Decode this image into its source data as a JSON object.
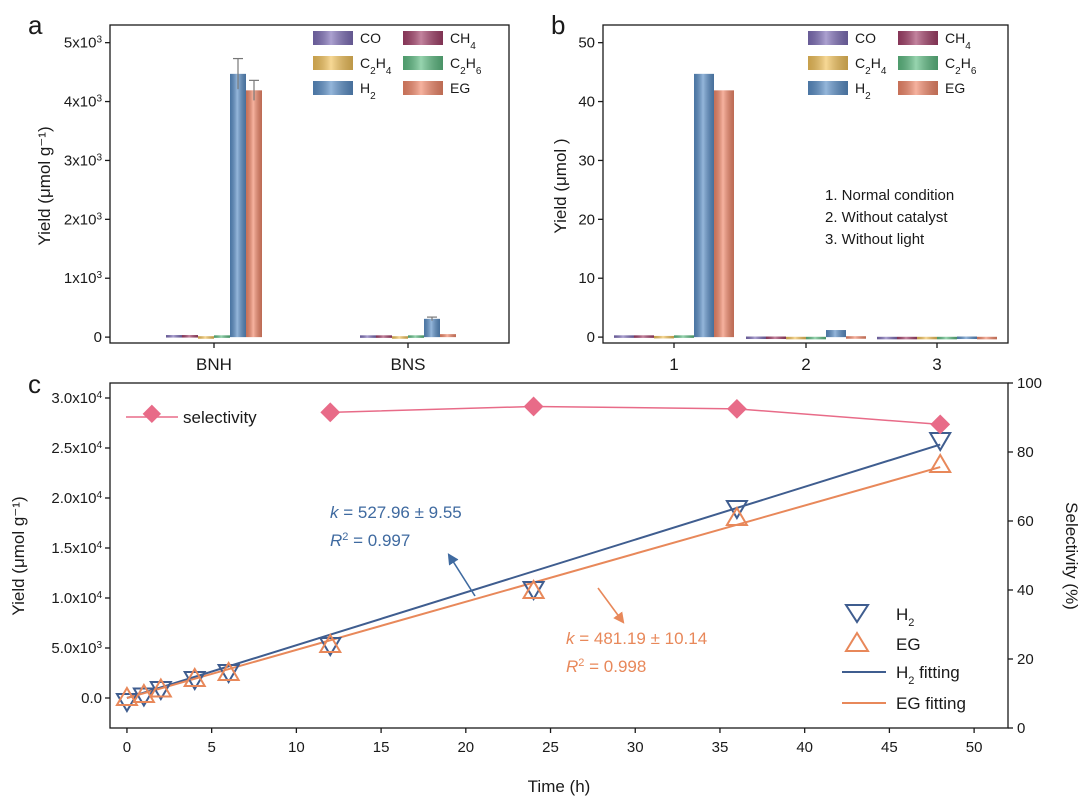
{
  "colors": {
    "CO": "#7f6fb8",
    "CH4": "#a3416a",
    "C2H4": "#f3c35c",
    "C2H6": "#5fbd84",
    "H2": "#5b8fc7",
    "EG": "#f2896b",
    "selectivity": "#e86b88",
    "h2_line": "#3f5d8f",
    "eg_line": "#e8885a",
    "annot_h2": "#3f6aa0",
    "annot_eg": "#e8885a"
  },
  "chart_data": [
    {
      "type": "bar",
      "panel": "a",
      "categories": [
        "BNH",
        "BNS"
      ],
      "ylabel": "Yield (μmol g⁻¹)",
      "ylim": [
        -100,
        5300
      ],
      "yticks": [
        {
          "value": 0,
          "label": "0",
          "exp": ""
        },
        {
          "value": 1000,
          "label": "1x10",
          "exp": "3"
        },
        {
          "value": 2000,
          "label": "2x10",
          "exp": "3"
        },
        {
          "value": 3000,
          "label": "3x10",
          "exp": "3"
        },
        {
          "value": 4000,
          "label": "4x10",
          "exp": "3"
        },
        {
          "value": 5000,
          "label": "5x10",
          "exp": "3"
        }
      ],
      "legend": [
        {
          "key": "CO",
          "main": "CO",
          "sub": ""
        },
        {
          "key": "CH4",
          "main": "CH",
          "sub": "4"
        },
        {
          "key": "C2H4",
          "main": "C",
          "sub": "2",
          "main2": "H",
          "sub2": "4"
        },
        {
          "key": "C2H6",
          "main": "C",
          "sub": "2",
          "main2": "H",
          "sub2": "6"
        },
        {
          "key": "H2",
          "main": "H",
          "sub": "2"
        },
        {
          "key": "EG",
          "main": "EG",
          "sub": ""
        }
      ],
      "series": [
        {
          "key": "CO",
          "values": [
            35,
            30
          ]
        },
        {
          "key": "CH4",
          "values": [
            35,
            30
          ]
        },
        {
          "key": "C2H4",
          "values": [
            15,
            15
          ]
        },
        {
          "key": "C2H6",
          "values": [
            30,
            30
          ]
        },
        {
          "key": "H2",
          "values": [
            4470,
            310
          ],
          "errors": [
            260,
            30
          ]
        },
        {
          "key": "EG",
          "values": [
            4190,
            50
          ],
          "errors": [
            170,
            0
          ]
        }
      ]
    },
    {
      "type": "bar",
      "panel": "b",
      "categories": [
        "1",
        "2",
        "3"
      ],
      "ylabel": "Yield (μmol )",
      "ylim": [
        -1,
        53
      ],
      "yticks": [
        0,
        10,
        20,
        30,
        40,
        50
      ],
      "legend": [
        {
          "key": "CO",
          "main": "CO",
          "sub": ""
        },
        {
          "key": "CH4",
          "main": "CH",
          "sub": "4"
        },
        {
          "key": "C2H4",
          "main": "C",
          "sub": "2",
          "main2": "H",
          "sub2": "4"
        },
        {
          "key": "C2H6",
          "main": "C",
          "sub": "2",
          "main2": "H",
          "sub2": "6"
        },
        {
          "key": "H2",
          "main": "H",
          "sub": "2"
        },
        {
          "key": "EG",
          "main": "EG",
          "sub": ""
        }
      ],
      "annotations": [
        "1. Normal condition",
        "2. Without catalyst",
        "3. Without light"
      ],
      "series": [
        {
          "key": "CO",
          "values": [
            0.3,
            0.1,
            0.05
          ]
        },
        {
          "key": "CH4",
          "values": [
            0.3,
            0.1,
            0.05
          ]
        },
        {
          "key": "C2H4",
          "values": [
            0.2,
            0.05,
            0.05
          ]
        },
        {
          "key": "C2H6",
          "values": [
            0.3,
            0.05,
            0.05
          ]
        },
        {
          "key": "H2",
          "values": [
            44.7,
            1.2,
            0.1
          ]
        },
        {
          "key": "EG",
          "values": [
            41.9,
            0.15,
            0.05
          ]
        }
      ]
    },
    {
      "type": "line",
      "panel": "c",
      "xlabel": "Time (h)",
      "ylabel": "Yield (μmol g⁻¹)",
      "y2label": "Selectivity (%)",
      "xlim": [
        -1,
        52
      ],
      "ylim": [
        -3000,
        31500
      ],
      "y2lim": [
        0,
        100
      ],
      "xticks": [
        0,
        5,
        10,
        15,
        20,
        25,
        30,
        35,
        40,
        45,
        50
      ],
      "yticks": [
        {
          "value": 0,
          "label": "0.0",
          "exp": ""
        },
        {
          "value": 5000,
          "label": "5.0x10",
          "exp": "3"
        },
        {
          "value": 10000,
          "label": "1.0x10",
          "exp": "4"
        },
        {
          "value": 15000,
          "label": "1.5x10",
          "exp": "4"
        },
        {
          "value": 20000,
          "label": "2.0x10",
          "exp": "4"
        },
        {
          "value": 25000,
          "label": "2.5x10",
          "exp": "4"
        },
        {
          "value": 30000,
          "label": "3.0x10",
          "exp": "4"
        }
      ],
      "y2ticks": [
        0,
        20,
        40,
        60,
        80,
        100
      ],
      "series": [
        {
          "key": "H2",
          "name": "H₂",
          "x": [
            0,
            1,
            2,
            4,
            6,
            12,
            24,
            36,
            48
          ],
          "y": [
            -300,
            250,
            900,
            1900,
            2600,
            5300,
            10900,
            19000,
            25800
          ]
        },
        {
          "key": "EG",
          "name": "EG",
          "x": [
            0,
            1,
            2,
            4,
            6,
            12,
            24,
            36,
            48
          ],
          "y": [
            0,
            300,
            850,
            1900,
            2500,
            5300,
            10700,
            18000,
            23300
          ]
        },
        {
          "key": "selectivity",
          "name": "selectivity",
          "axis": "right",
          "x": [
            12,
            24,
            36,
            48
          ],
          "y": [
            91.5,
            93.2,
            92.5,
            88
          ]
        }
      ],
      "fits": [
        {
          "key": "H2",
          "name": "H₂ fitting",
          "x": [
            0,
            48
          ],
          "y": [
            0,
            25342
          ]
        },
        {
          "key": "EG",
          "name": "EG fitting",
          "x": [
            0,
            48
          ],
          "y": [
            0,
            23097
          ]
        }
      ],
      "annotations": {
        "h2": {
          "k": "k",
          "text": " = 527.96 ± 9.55",
          "r": "R",
          "rtext": " = 0.997"
        },
        "eg": {
          "k": "k",
          "text": " = 481.19 ± 10.14",
          "r": "R",
          "rtext": " = 0.998"
        }
      },
      "legend": {
        "selectivity": "selectivity",
        "h2": "H",
        "h2_sub": "2",
        "eg": "EG",
        "h2_fit": "H",
        "h2_fit_sub": "2",
        "h2_fit_tail": " fitting",
        "eg_fit": "EG fitting"
      }
    }
  ],
  "panels": {
    "a": "a",
    "b": "b",
    "c": "c"
  }
}
